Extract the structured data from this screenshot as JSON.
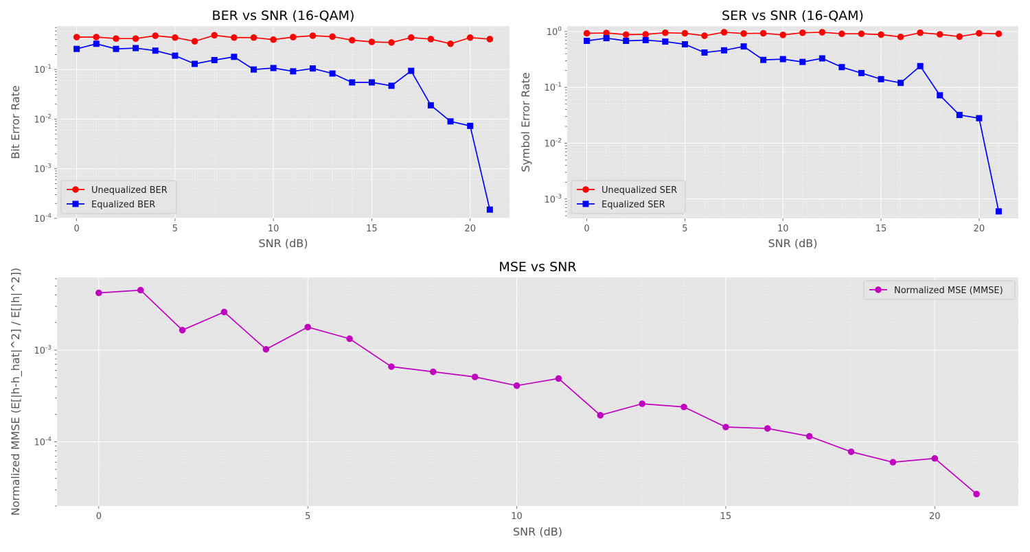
{
  "chart_data": [
    {
      "type": "line",
      "title": "BER vs SNR (16-QAM)",
      "xlabel": "SNR (dB)",
      "ylabel": "Bit Error Rate",
      "yscale": "log",
      "grid": true,
      "legend_position": "lower-left",
      "x": [
        0,
        1,
        2,
        3,
        4,
        5,
        6,
        7,
        8,
        9,
        10,
        11,
        12,
        13,
        14,
        15,
        16,
        17,
        18,
        19,
        20,
        21
      ],
      "xlim": [
        -1,
        22
      ],
      "ylim": [
        0.0001,
        0.75
      ],
      "xticks": [
        0,
        5,
        10,
        15,
        20
      ],
      "yticks": [
        0.0001,
        0.001,
        0.01,
        0.1
      ],
      "ytick_labels": [
        [
          "10",
          "-4"
        ],
        [
          "10",
          "-3"
        ],
        [
          "10",
          "-2"
        ],
        [
          "10",
          "-1"
        ]
      ],
      "series": [
        {
          "name": "Unequalized BER",
          "color": "#ff0000",
          "marker": "circle",
          "values": [
            0.45,
            0.45,
            0.42,
            0.42,
            0.48,
            0.44,
            0.37,
            0.49,
            0.44,
            0.44,
            0.4,
            0.45,
            0.48,
            0.46,
            0.39,
            0.36,
            0.35,
            0.44,
            0.41,
            0.33,
            0.44,
            0.41
          ]
        },
        {
          "name": "Equalized BER",
          "color": "#0000ff",
          "marker": "square",
          "values": [
            0.26,
            0.33,
            0.26,
            0.27,
            0.24,
            0.19,
            0.13,
            0.155,
            0.18,
            0.1,
            0.107,
            0.092,
            0.105,
            0.083,
            0.055,
            0.055,
            0.047,
            0.094,
            0.019,
            0.009,
            0.0073,
            0.00015
          ]
        }
      ]
    },
    {
      "type": "line",
      "title": "SER vs SNR (16-QAM)",
      "xlabel": "SNR (dB)",
      "ylabel": "Symbol Error Rate",
      "yscale": "log",
      "grid": true,
      "legend_position": "lower-left",
      "x": [
        0,
        1,
        2,
        3,
        4,
        5,
        6,
        7,
        8,
        9,
        10,
        11,
        12,
        13,
        14,
        15,
        16,
        17,
        18,
        19,
        20,
        21
      ],
      "xlim": [
        -1,
        22
      ],
      "ylim": [
        0.00045,
        1.25
      ],
      "xticks": [
        0,
        5,
        10,
        15,
        20
      ],
      "yticks": [
        0.001,
        0.01,
        0.1,
        1
      ],
      "ytick_labels": [
        [
          "10",
          "-3"
        ],
        [
          "10",
          "-2"
        ],
        [
          "10",
          "-1"
        ],
        [
          "10",
          "0"
        ]
      ],
      "series": [
        {
          "name": "Unequalized SER",
          "color": "#ff0000",
          "marker": "circle",
          "values": [
            0.93,
            0.94,
            0.88,
            0.89,
            0.95,
            0.93,
            0.84,
            0.97,
            0.92,
            0.93,
            0.87,
            0.95,
            0.97,
            0.91,
            0.91,
            0.88,
            0.8,
            0.95,
            0.89,
            0.81,
            0.93,
            0.91
          ]
        },
        {
          "name": "Equalized SER",
          "color": "#0000ff",
          "marker": "square",
          "values": [
            0.68,
            0.76,
            0.68,
            0.7,
            0.66,
            0.59,
            0.42,
            0.46,
            0.54,
            0.31,
            0.32,
            0.285,
            0.33,
            0.23,
            0.18,
            0.14,
            0.12,
            0.24,
            0.072,
            0.032,
            0.028,
            0.0006
          ]
        }
      ]
    },
    {
      "type": "line",
      "title": "MSE vs SNR",
      "xlabel": "SNR (dB)",
      "ylabel": "Normalized MMSE (E[|h-h_hat|^2] / E[|h|^2])",
      "yscale": "log",
      "grid": true,
      "legend_position": "upper-right",
      "x": [
        0,
        1,
        2,
        3,
        4,
        5,
        6,
        7,
        8,
        9,
        10,
        11,
        12,
        13,
        14,
        15,
        16,
        17,
        18,
        19,
        20,
        21
      ],
      "xlim": [
        -1,
        22
      ],
      "ylim": [
        2e-05,
        0.0062
      ],
      "xticks": [
        0,
        5,
        10,
        15,
        20
      ],
      "yticks": [
        0.0001,
        0.001
      ],
      "ytick_labels": [
        [
          "10",
          "-4"
        ],
        [
          "10",
          "-3"
        ]
      ],
      "series": [
        {
          "name": "Normalized MSE (MMSE)",
          "color": "#bf00bf",
          "marker": "circle",
          "values": [
            0.0042,
            0.0045,
            0.00165,
            0.0026,
            0.00102,
            0.00178,
            0.00133,
            0.00066,
            0.00058,
            0.00051,
            0.00041,
            0.00049,
            0.000195,
            0.00026,
            0.00024,
            0.000145,
            0.00014,
            0.000115,
            7.8e-05,
            6e-05,
            6.6e-05,
            2.7e-05
          ]
        }
      ]
    }
  ]
}
